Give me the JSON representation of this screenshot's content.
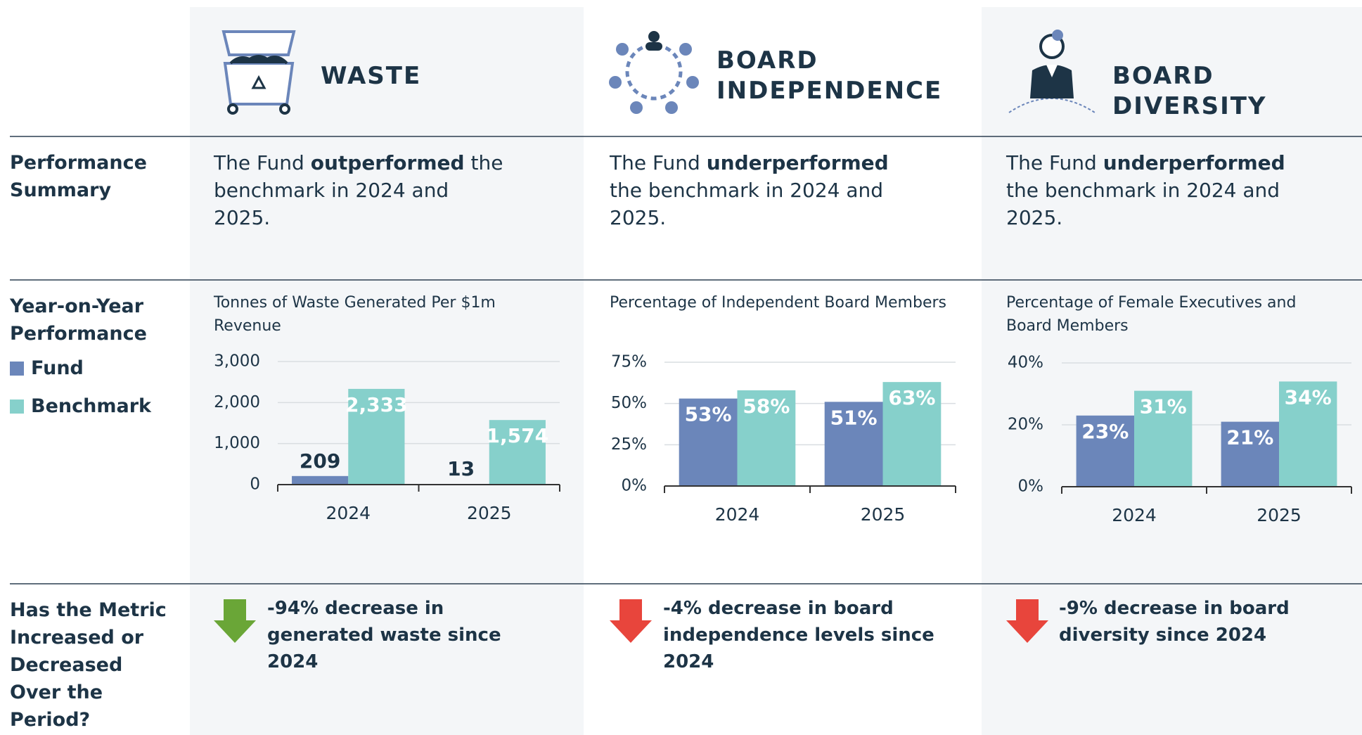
{
  "row_labels": [
    "Performance Summary",
    "Year-on-Year Performance",
    "Has the Metric Increased or Decreased Over the Period?"
  ],
  "columns": [
    {
      "heading": "WASTE",
      "summary": {
        "pre": "The Fund ",
        "strong": "outperformed",
        "post": " the benchmark in 2024 and 2025."
      },
      "change": "-94% decrease in generated waste since 2024",
      "arrow_color": "#6aa637"
    },
    {
      "heading": "BOARD INDEPENDENCE",
      "summary": {
        "pre": "The Fund ",
        "strong": "underperformed",
        "post": " the benchmark in 2024 and 2025."
      },
      "change": "-4% decrease in board independence levels since 2024",
      "arrow_color": "#e8453c"
    },
    {
      "heading": "BOARD DIVERSITY",
      "summary": {
        "pre": "The Fund ",
        "strong": "underperformed",
        "post": " the benchmark in 2024 and 2025."
      },
      "change": "-9%  decrease in board diversity since 2024",
      "arrow_color": "#e8453c"
    }
  ],
  "chart_data": [
    {
      "type": "bar",
      "title": "Tonnes of Waste Generated Per $1m Revenue",
      "categories": [
        "2024",
        "2025"
      ],
      "series": [
        {
          "name": "Fund",
          "color": "#6b86ba",
          "values": [
            209,
            13
          ]
        },
        {
          "name": "Benchmark",
          "color": "#86d0cb",
          "values": [
            2333,
            1574
          ],
          "value_labels": [
            "2,333",
            "1,574"
          ]
        }
      ],
      "ylim": [
        0,
        3000
      ],
      "yticks": [
        0,
        {
          "value": 1000,
          "label": "1,000"
        },
        {
          "value": 2000,
          "label": "2,000"
        },
        {
          "value": 3000,
          "label": "3,000"
        }
      ],
      "grid": true
    },
    {
      "type": "bar",
      "title": "Percentage of Independent Board Members",
      "categories": [
        "2024",
        "2025"
      ],
      "series": [
        {
          "name": "Fund",
          "color": "#6b86ba",
          "values": [
            53,
            51
          ],
          "value_labels": [
            "53%",
            "51%"
          ]
        },
        {
          "name": "Benchmark",
          "color": "#86d0cb",
          "values": [
            58,
            63
          ],
          "value_labels": [
            "58%",
            "63%"
          ]
        }
      ],
      "ylim": [
        0,
        75
      ],
      "yticks": [
        {
          "value": 0,
          "label": "0%"
        },
        {
          "value": 25,
          "label": "25%"
        },
        {
          "value": 50,
          "label": "50%"
        },
        {
          "value": 75,
          "label": "75%"
        }
      ],
      "grid": true
    },
    {
      "type": "bar",
      "title": "Percentage of Female Executives and Board Members",
      "categories": [
        "2024",
        "2025"
      ],
      "series": [
        {
          "name": "Fund",
          "color": "#6b86ba",
          "values": [
            23,
            21
          ],
          "value_labels": [
            "23%",
            "21%"
          ]
        },
        {
          "name": "Benchmark",
          "color": "#86d0cb",
          "values": [
            31,
            34
          ],
          "value_labels": [
            "31%",
            "34%"
          ]
        }
      ],
      "ylim": [
        0,
        40
      ],
      "yticks": [
        {
          "value": 0,
          "label": "0%"
        },
        {
          "value": 20,
          "label": "20%"
        },
        {
          "value": 40,
          "label": "40%"
        }
      ],
      "grid": true
    }
  ]
}
